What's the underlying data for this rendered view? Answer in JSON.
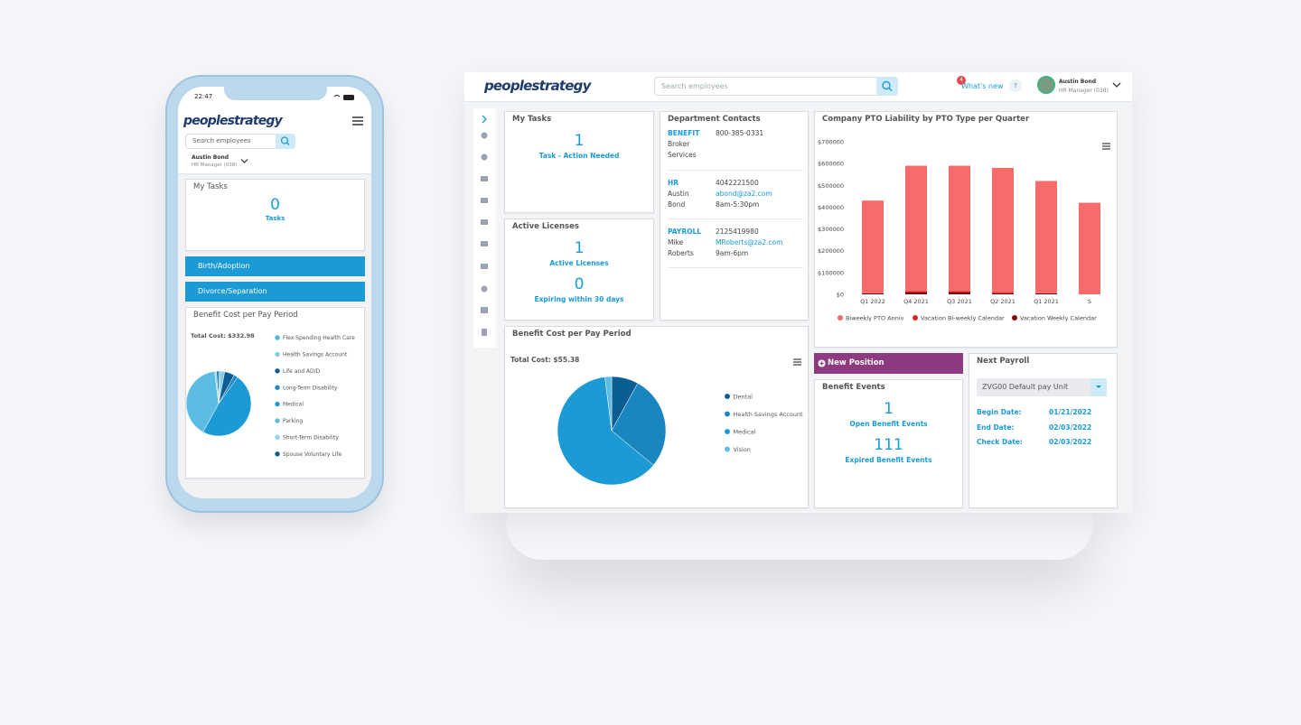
{
  "phone": {
    "time": "22:47",
    "logo": "peoplestrategy",
    "search_placeholder": "Search employees",
    "user": {
      "name": "Austin Bond",
      "role": "HR Manager (038)"
    },
    "my_tasks": {
      "title": "My Tasks",
      "count": 0,
      "label": "Tasks"
    },
    "actions": [
      "Birth/Adoption",
      "Divorce/Separation"
    ],
    "benefit_cost": {
      "title": "Benefit Cost per Pay Period",
      "total": "Total Cost: $332.98",
      "chart_data": {
        "type": "pie",
        "categories": [
          "Flex Spending Health Care",
          "Health Savings Account",
          "Life and AD/D",
          "Long-Term Disability",
          "Medical",
          "Parking",
          "Short-Term Disability",
          "Spouse Voluntary Life"
        ],
        "values": [
          1,
          2,
          5,
          2,
          48,
          40,
          1,
          1
        ],
        "colors": [
          "#4db6e4",
          "#7fcbea",
          "#0b5e94",
          "#1f86bf",
          "#1b9ad6",
          "#5bbce4",
          "#8fd3f0",
          "#0b5e94"
        ]
      }
    }
  },
  "desktop": {
    "logo": "peoplestrategy",
    "search_placeholder": "Search employees",
    "notifications": 4,
    "whats_new": "What's new",
    "help": "?",
    "user": {
      "name": "Austin Bond",
      "role": "HR Manager (038)"
    },
    "my_tasks": {
      "title": "My Tasks",
      "count": 1,
      "label": "Task - Action Needed"
    },
    "active_licenses": {
      "title": "Active Licenses",
      "items": [
        {
          "count": 1,
          "label": "Active Licenses"
        },
        {
          "count": 0,
          "label": "Expiring within 30 days"
        }
      ]
    },
    "department_contacts": {
      "title": "Department Contacts",
      "contacts": [
        {
          "department": "BENEFIT",
          "name": "Broker Services",
          "phone": "800-385-0331"
        },
        {
          "department": "HR",
          "name": "Austin Bond",
          "phone": "4042221500",
          "email": "abond@za2.com",
          "hours": "8am-5:30pm"
        },
        {
          "department": "PAYROLL",
          "name": "Mike Roberts",
          "phone": "2125419980",
          "email": "MRoberts@za2.com",
          "hours": "9am-6pm"
        }
      ]
    },
    "benefit_cost": {
      "title": "Benefit Cost per Pay Period",
      "total": "Total Cost: $55.38",
      "chart_data": {
        "type": "pie",
        "categories": [
          "Dental",
          "Health Savings Account",
          "Medical",
          "Vision"
        ],
        "values": [
          8,
          28,
          62,
          2
        ],
        "colors": [
          "#0b5e94",
          "#1a86c0",
          "#1b9ad6",
          "#5bbce4"
        ]
      }
    },
    "pto_liability": {
      "chart_data": {
        "type": "bar",
        "title": "Company PTO Liability by PTO Type per Quarter",
        "categories": [
          "Q1 2022",
          "Q4 2021",
          "Q3 2021",
          "Q2 2021",
          "Q1 2021",
          "S"
        ],
        "series": [
          {
            "name": "Biweekly PTO Anniv",
            "color": "#f76b6b",
            "values": [
              425000,
              575000,
              575000,
              570000,
              515000,
              420000
            ]
          },
          {
            "name": "Vacation Bi-weekly Calendar",
            "color": "#d62728",
            "values": [
              0,
              5000,
              5000,
              5000,
              0,
              0
            ]
          },
          {
            "name": "Vacation Weekly Calendar",
            "color": "#8b0000",
            "values": [
              5000,
              10000,
              10000,
              5000,
              5000,
              0
            ]
          }
        ],
        "stacked": true,
        "ylim": [
          0,
          700000
        ],
        "yticks": [
          {
            "value": 0,
            "label": "$0"
          },
          {
            "value": 100000,
            "label": "$100000"
          },
          {
            "value": 200000,
            "label": "$200000"
          },
          {
            "value": 300000,
            "label": "$300000"
          },
          {
            "value": 400000,
            "label": "$400000"
          },
          {
            "value": 500000,
            "label": "$500000"
          },
          {
            "value": 600000,
            "label": "$600000"
          },
          {
            "value": 700000,
            "label": "$700000"
          }
        ]
      }
    },
    "new_position": "New Position",
    "benefit_events": {
      "title": "Benefit Events",
      "items": [
        {
          "count": 1,
          "label": "Open Benefit Events"
        },
        {
          "count": 111,
          "label": "Expired Benefit Events"
        }
      ]
    },
    "next_payroll": {
      "title": "Next Payroll",
      "pay_unit": "ZVG00 Default pay Unit",
      "fields": [
        {
          "label": "Begin Date:",
          "value": "01/21/2022"
        },
        {
          "label": "End Date:",
          "value": "02/03/2022"
        },
        {
          "label": "Check Date:",
          "value": "02/03/2022"
        }
      ]
    }
  }
}
